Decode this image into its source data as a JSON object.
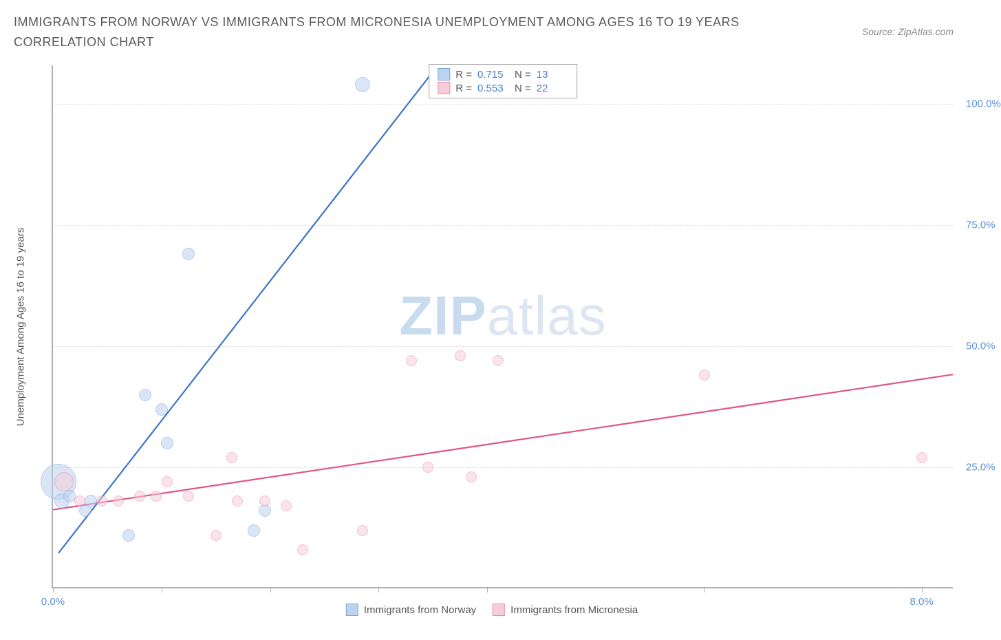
{
  "title": "IMMIGRANTS FROM NORWAY VS IMMIGRANTS FROM MICRONESIA UNEMPLOYMENT AMONG AGES 16 TO 19 YEARS CORRELATION CHART",
  "source": "Source: ZipAtlas.com",
  "yaxis_label": "Unemployment Among Ages 16 to 19 years",
  "watermark_a": "ZIP",
  "watermark_b": "atlas",
  "chart": {
    "type": "scatter-with-regression",
    "background_color": "#ffffff",
    "axis_color": "#b0b0b0",
    "grid_color": "#e2e2e2",
    "tick_label_color": "#5b8fd6",
    "text_color": "#555555",
    "xlim": [
      0,
      8.3
    ],
    "ylim": [
      0,
      108
    ],
    "xticks": [
      0,
      1,
      2,
      3,
      4,
      6,
      8
    ],
    "xtick_labels": {
      "0": "0.0%",
      "8": "8.0%"
    },
    "yticks": [
      25,
      50,
      75,
      100
    ],
    "ytick_labels": {
      "25": "25.0%",
      "50": "50.0%",
      "75": "75.0%",
      "100": "100.0%"
    },
    "series": [
      {
        "key": "norway",
        "label": "Immigrants from Norway",
        "fill_color": "#bcd3ef",
        "stroke_color": "#7ea7dd",
        "line_color": "#3b74c7",
        "fill_opacity": 0.55,
        "R": "0.715",
        "N": "13",
        "regression": {
          "x1": 0.05,
          "y1": 7,
          "x2": 3.55,
          "y2": 108
        },
        "points": [
          {
            "x": 0.05,
            "y": 22,
            "r": 26
          },
          {
            "x": 0.08,
            "y": 18,
            "r": 11
          },
          {
            "x": 0.15,
            "y": 19,
            "r": 9
          },
          {
            "x": 0.3,
            "y": 16,
            "r": 9
          },
          {
            "x": 0.35,
            "y": 18,
            "r": 9
          },
          {
            "x": 0.7,
            "y": 11,
            "r": 9
          },
          {
            "x": 0.85,
            "y": 40,
            "r": 9
          },
          {
            "x": 1.0,
            "y": 37,
            "r": 9
          },
          {
            "x": 1.05,
            "y": 30,
            "r": 9
          },
          {
            "x": 1.25,
            "y": 69,
            "r": 9
          },
          {
            "x": 1.85,
            "y": 12,
            "r": 9
          },
          {
            "x": 1.95,
            "y": 16,
            "r": 9
          },
          {
            "x": 2.85,
            "y": 104,
            "r": 11
          }
        ]
      },
      {
        "key": "micronesia",
        "label": "Immigrants from Micronesia",
        "fill_color": "#f6cdd9",
        "stroke_color": "#e98fab",
        "line_color": "#e15584",
        "fill_opacity": 0.55,
        "R": "0.553",
        "N": "22",
        "regression": {
          "x1": 0.0,
          "y1": 16,
          "x2": 8.3,
          "y2": 44
        },
        "points": [
          {
            "x": 0.1,
            "y": 22,
            "r": 14
          },
          {
            "x": 0.25,
            "y": 18,
            "r": 8
          },
          {
            "x": 0.45,
            "y": 18,
            "r": 8
          },
          {
            "x": 0.6,
            "y": 18,
            "r": 8
          },
          {
            "x": 0.8,
            "y": 19,
            "r": 8
          },
          {
            "x": 0.95,
            "y": 19,
            "r": 8
          },
          {
            "x": 1.05,
            "y": 22,
            "r": 8
          },
          {
            "x": 1.25,
            "y": 19,
            "r": 8
          },
          {
            "x": 1.5,
            "y": 11,
            "r": 8
          },
          {
            "x": 1.65,
            "y": 27,
            "r": 8
          },
          {
            "x": 1.7,
            "y": 18,
            "r": 8
          },
          {
            "x": 1.95,
            "y": 18,
            "r": 8
          },
          {
            "x": 2.15,
            "y": 17,
            "r": 8
          },
          {
            "x": 2.3,
            "y": 8,
            "r": 8
          },
          {
            "x": 2.85,
            "y": 12,
            "r": 8
          },
          {
            "x": 3.3,
            "y": 47,
            "r": 8
          },
          {
            "x": 3.45,
            "y": 25,
            "r": 8
          },
          {
            "x": 3.75,
            "y": 48,
            "r": 8
          },
          {
            "x": 3.85,
            "y": 23,
            "r": 8
          },
          {
            "x": 4.1,
            "y": 47,
            "r": 8
          },
          {
            "x": 6.0,
            "y": 44,
            "r": 8
          },
          {
            "x": 8.0,
            "y": 27,
            "r": 8
          }
        ]
      }
    ]
  },
  "legend_top": {
    "R_label": "R =",
    "N_label": "N ="
  }
}
